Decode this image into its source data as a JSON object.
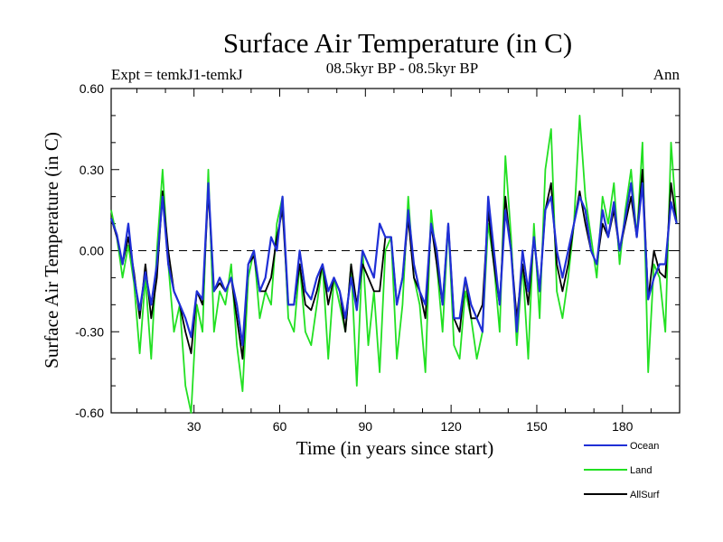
{
  "chart_data": {
    "type": "line",
    "title": "Surface Air Temperature (in C)",
    "subtitle_left": "Expt = temkJ1-temkJ",
    "subtitle_center": "08.5kyr BP - 08.5kyr BP",
    "subtitle_right": "Ann",
    "xlabel": "Time (in years since start)",
    "ylabel": "Surface Air Temperature (in C)",
    "xlim": [
      1,
      200
    ],
    "ylim": [
      -0.6,
      0.6
    ],
    "xticks": [
      30,
      60,
      90,
      120,
      150,
      180
    ],
    "xtick_labels": [
      "30",
      "60",
      "90",
      "120",
      "150",
      "180"
    ],
    "yticks": [
      -0.6,
      -0.3,
      0.0,
      0.3,
      0.6
    ],
    "ytick_labels": [
      "-0.60",
      "-0.30",
      "0.00",
      "0.30",
      "0.60"
    ],
    "reference_line": 0.0,
    "legend": [
      {
        "name": "Ocean",
        "color": "#1f2fd6"
      },
      {
        "name": "Land",
        "color": "#22e022"
      },
      {
        "name": "AllSurf",
        "color": "#000000"
      }
    ],
    "series": [
      {
        "name": "Land",
        "color": "#22e022",
        "x": [
          1,
          3,
          5,
          7,
          9,
          11,
          13,
          15,
          17,
          19,
          21,
          23,
          25,
          27,
          29,
          31,
          33,
          35,
          37,
          39,
          41,
          43,
          45,
          47,
          49,
          51,
          53,
          55,
          57,
          59,
          61,
          63,
          65,
          67,
          69,
          71,
          73,
          75,
          77,
          79,
          81,
          83,
          85,
          87,
          89,
          91,
          93,
          95,
          97,
          99,
          101,
          103,
          105,
          107,
          109,
          111,
          113,
          115,
          117,
          119,
          121,
          123,
          125,
          127,
          129,
          131,
          133,
          135,
          137,
          139,
          141,
          143,
          145,
          147,
          149,
          151,
          153,
          155,
          157,
          159,
          161,
          163,
          165,
          167,
          169,
          171,
          173,
          175,
          177,
          179,
          181,
          183,
          185,
          187,
          189,
          191,
          193,
          195,
          197,
          199
        ],
        "values": [
          0.15,
          0.05,
          -0.1,
          0.02,
          -0.12,
          -0.38,
          -0.1,
          -0.4,
          0.0,
          0.3,
          -0.05,
          -0.3,
          -0.2,
          -0.5,
          -0.6,
          -0.2,
          -0.3,
          0.3,
          -0.3,
          -0.15,
          -0.2,
          -0.05,
          -0.35,
          -0.52,
          -0.1,
          0.0,
          -0.25,
          -0.15,
          -0.2,
          0.1,
          0.2,
          -0.25,
          -0.3,
          -0.05,
          -0.3,
          -0.35,
          -0.2,
          -0.05,
          -0.4,
          -0.1,
          -0.2,
          -0.3,
          -0.05,
          -0.5,
          0.0,
          -0.35,
          -0.15,
          -0.45,
          0.0,
          0.05,
          -0.4,
          -0.2,
          0.2,
          -0.1,
          -0.2,
          -0.45,
          0.15,
          -0.05,
          -0.3,
          0.1,
          -0.35,
          -0.4,
          -0.15,
          -0.25,
          -0.4,
          -0.3,
          0.1,
          -0.05,
          -0.3,
          0.35,
          0.05,
          -0.35,
          -0.05,
          -0.4,
          0.1,
          -0.25,
          0.3,
          0.45,
          -0.15,
          -0.25,
          -0.1,
          0.1,
          0.5,
          0.2,
          0.05,
          -0.1,
          0.2,
          0.1,
          0.25,
          -0.05,
          0.15,
          0.3,
          0.05,
          0.4,
          -0.45,
          -0.05,
          -0.1,
          -0.3,
          0.4,
          0.1
        ]
      },
      {
        "name": "AllSurf",
        "color": "#000000",
        "x": [
          1,
          3,
          5,
          7,
          9,
          11,
          13,
          15,
          17,
          19,
          21,
          23,
          25,
          27,
          29,
          31,
          33,
          35,
          37,
          39,
          41,
          43,
          45,
          47,
          49,
          51,
          53,
          55,
          57,
          59,
          61,
          63,
          65,
          67,
          69,
          71,
          73,
          75,
          77,
          79,
          81,
          83,
          85,
          87,
          89,
          91,
          93,
          95,
          97,
          99,
          101,
          103,
          105,
          107,
          109,
          111,
          113,
          115,
          117,
          119,
          121,
          123,
          125,
          127,
          129,
          131,
          133,
          135,
          137,
          139,
          141,
          143,
          145,
          147,
          149,
          151,
          153,
          155,
          157,
          159,
          161,
          163,
          165,
          167,
          169,
          171,
          173,
          175,
          177,
          179,
          181,
          183,
          185,
          187,
          189,
          191,
          193,
          195,
          197,
          199
        ],
        "values": [
          0.12,
          0.05,
          -0.05,
          0.05,
          -0.08,
          -0.25,
          -0.05,
          -0.25,
          -0.1,
          0.22,
          0.0,
          -0.15,
          -0.2,
          -0.3,
          -0.38,
          -0.15,
          -0.2,
          0.22,
          -0.15,
          -0.12,
          -0.15,
          -0.1,
          -0.25,
          -0.4,
          -0.05,
          -0.02,
          -0.15,
          -0.15,
          -0.1,
          0.05,
          0.15,
          -0.2,
          -0.2,
          -0.05,
          -0.2,
          -0.22,
          -0.15,
          -0.05,
          -0.2,
          -0.1,
          -0.15,
          -0.3,
          -0.05,
          -0.2,
          -0.05,
          -0.1,
          -0.15,
          -0.15,
          0.05,
          0.05,
          -0.2,
          -0.1,
          0.12,
          -0.1,
          -0.15,
          -0.25,
          0.1,
          -0.05,
          -0.2,
          0.1,
          -0.25,
          -0.3,
          -0.1,
          -0.25,
          -0.25,
          -0.2,
          0.15,
          -0.05,
          -0.2,
          0.2,
          0.0,
          -0.25,
          -0.05,
          -0.2,
          0.05,
          -0.15,
          0.15,
          0.25,
          -0.05,
          -0.15,
          -0.05,
          0.1,
          0.22,
          0.1,
          0.0,
          -0.05,
          0.1,
          0.05,
          0.15,
          0.0,
          0.1,
          0.2,
          0.05,
          0.3,
          -0.18,
          0.0,
          -0.08,
          -0.1,
          0.25,
          0.1
        ]
      },
      {
        "name": "Ocean",
        "color": "#1f2fd6",
        "x": [
          1,
          3,
          5,
          7,
          9,
          11,
          13,
          15,
          17,
          19,
          21,
          23,
          25,
          27,
          29,
          31,
          33,
          35,
          37,
          39,
          41,
          43,
          45,
          47,
          49,
          51,
          53,
          55,
          57,
          59,
          61,
          63,
          65,
          67,
          69,
          71,
          73,
          75,
          77,
          79,
          81,
          83,
          85,
          87,
          89,
          91,
          93,
          95,
          97,
          99,
          101,
          103,
          105,
          107,
          109,
          111,
          113,
          115,
          117,
          119,
          121,
          123,
          125,
          127,
          129,
          131,
          133,
          135,
          137,
          139,
          141,
          143,
          145,
          147,
          149,
          151,
          153,
          155,
          157,
          159,
          161,
          163,
          165,
          167,
          169,
          171,
          173,
          175,
          177,
          179,
          181,
          183,
          185,
          187,
          189,
          191,
          193,
          195,
          197,
          199
        ],
        "values": [
          0.12,
          0.06,
          -0.05,
          0.1,
          -0.1,
          -0.22,
          -0.08,
          -0.2,
          -0.05,
          0.2,
          -0.05,
          -0.15,
          -0.2,
          -0.25,
          -0.32,
          -0.15,
          -0.18,
          0.25,
          -0.15,
          -0.1,
          -0.15,
          -0.1,
          -0.2,
          -0.35,
          -0.05,
          0.0,
          -0.15,
          -0.1,
          0.05,
          0.0,
          0.2,
          -0.2,
          -0.2,
          0.0,
          -0.15,
          -0.18,
          -0.1,
          -0.05,
          -0.15,
          -0.1,
          -0.15,
          -0.25,
          -0.1,
          -0.22,
          0.0,
          -0.05,
          -0.1,
          0.1,
          0.05,
          0.05,
          -0.2,
          -0.1,
          0.15,
          -0.05,
          -0.15,
          -0.2,
          0.1,
          0.0,
          -0.2,
          0.1,
          -0.25,
          -0.25,
          -0.1,
          -0.2,
          -0.25,
          -0.3,
          0.2,
          0.0,
          -0.2,
          0.15,
          0.0,
          -0.3,
          0.0,
          -0.15,
          0.05,
          -0.15,
          0.15,
          0.2,
          0.0,
          -0.1,
          0.0,
          0.1,
          0.2,
          0.15,
          0.0,
          -0.05,
          0.15,
          0.05,
          0.18,
          0.0,
          0.12,
          0.25,
          0.05,
          0.25,
          -0.18,
          -0.1,
          -0.05,
          -0.05,
          0.18,
          0.1
        ]
      }
    ]
  }
}
